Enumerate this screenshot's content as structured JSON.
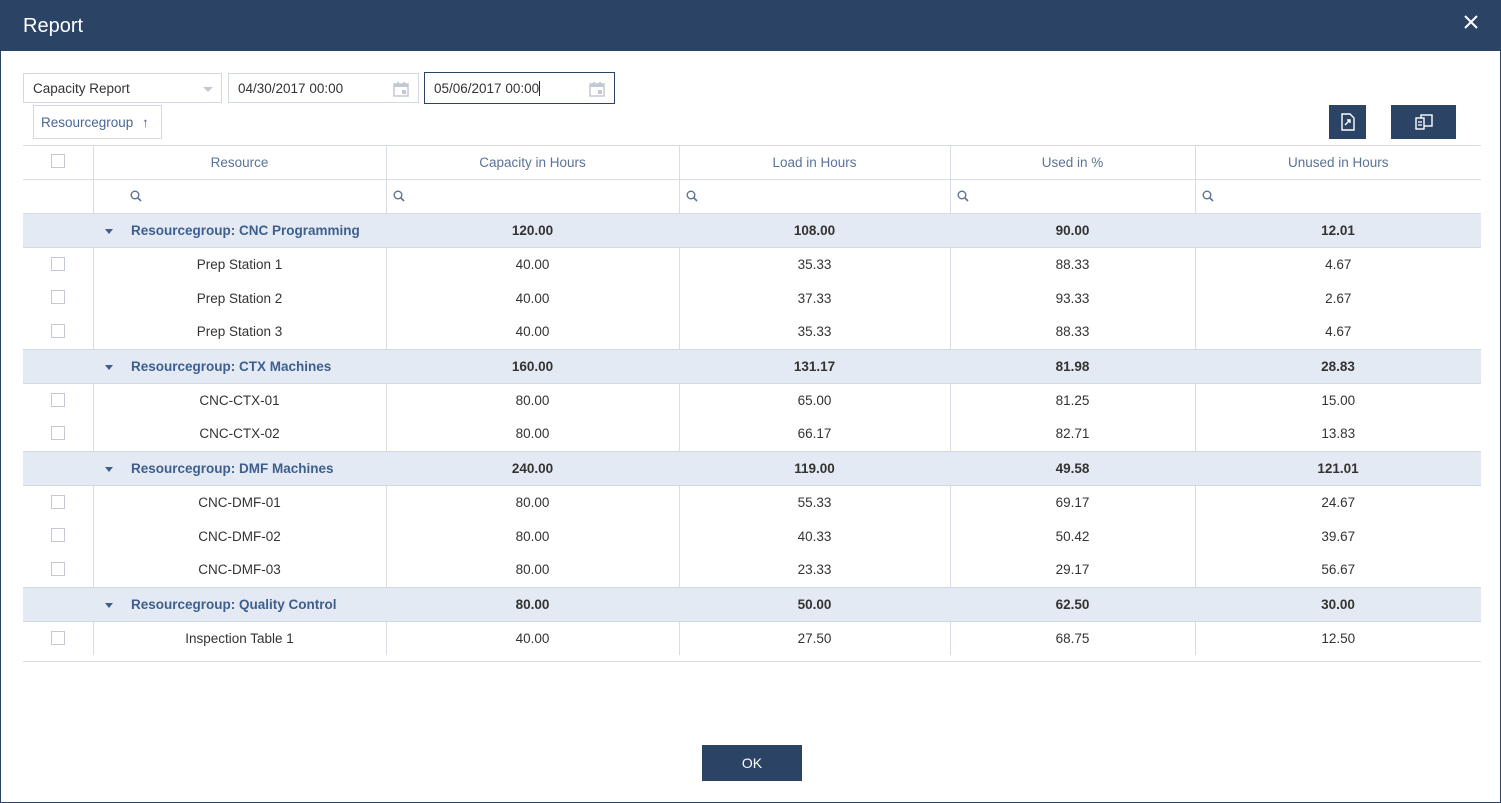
{
  "window": {
    "title": "Report"
  },
  "toolbar": {
    "report_type": "Capacity Report",
    "date_from": "04/30/2017 00:00",
    "date_to": "05/06/2017 00:00",
    "group_chip": "Resourcegroup",
    "group_chip_arrow": "↑"
  },
  "columns": [
    "Resource",
    "Capacity in Hours",
    "Load in Hours",
    "Used in %",
    "Unused in Hours"
  ],
  "groups": [
    {
      "label": "Resourcegroup: CNC Programming",
      "capacity": "120.00",
      "load": "108.00",
      "used": "90.00",
      "unused": "12.01",
      "rows": [
        {
          "resource": "Prep Station 1",
          "capacity": "40.00",
          "load": "35.33",
          "used": "88.33",
          "unused": "4.67"
        },
        {
          "resource": "Prep Station 2",
          "capacity": "40.00",
          "load": "37.33",
          "used": "93.33",
          "unused": "2.67"
        },
        {
          "resource": "Prep Station 3",
          "capacity": "40.00",
          "load": "35.33",
          "used": "88.33",
          "unused": "4.67"
        }
      ]
    },
    {
      "label": "Resourcegroup: CTX Machines",
      "capacity": "160.00",
      "load": "131.17",
      "used": "81.98",
      "unused": "28.83",
      "rows": [
        {
          "resource": "CNC-CTX-01",
          "capacity": "80.00",
          "load": "65.00",
          "used": "81.25",
          "unused": "15.00"
        },
        {
          "resource": "CNC-CTX-02",
          "capacity": "80.00",
          "load": "66.17",
          "used": "82.71",
          "unused": "13.83"
        }
      ]
    },
    {
      "label": "Resourcegroup: DMF Machines",
      "capacity": "240.00",
      "load": "119.00",
      "used": "49.58",
      "unused": "121.01",
      "rows": [
        {
          "resource": "CNC-DMF-01",
          "capacity": "80.00",
          "load": "55.33",
          "used": "69.17",
          "unused": "24.67"
        },
        {
          "resource": "CNC-DMF-02",
          "capacity": "80.00",
          "load": "40.33",
          "used": "50.42",
          "unused": "39.67"
        },
        {
          "resource": "CNC-DMF-03",
          "capacity": "80.00",
          "load": "23.33",
          "used": "29.17",
          "unused": "56.67"
        }
      ]
    },
    {
      "label": "Resourcegroup: Quality Control",
      "capacity": "80.00",
      "load": "50.00",
      "used": "62.50",
      "unused": "30.00",
      "rows": [
        {
          "resource": "Inspection Table 1",
          "capacity": "40.00",
          "load": "27.50",
          "used": "68.75",
          "unused": "12.50"
        }
      ]
    }
  ],
  "footer": {
    "ok_label": "OK"
  },
  "icons": {
    "close": "close-icon",
    "calendar": "calendar-icon",
    "export": "export-icon",
    "columns": "column-chooser-icon",
    "search": "search-icon",
    "expand": "collapse-triangle-icon"
  },
  "colors": {
    "titlebar": "#2b4466",
    "group_row": "#e4eaf3",
    "header_text": "#5a7396",
    "group_text": "#3e5f8e"
  }
}
